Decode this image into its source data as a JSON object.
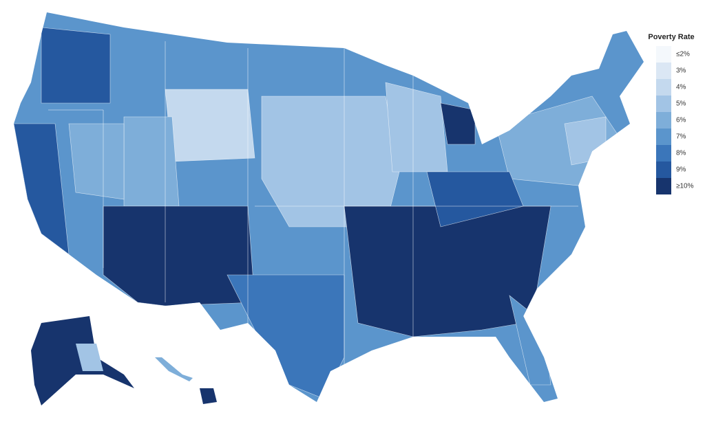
{
  "legend": {
    "title": "Poverty Rate",
    "items": [
      {
        "label": "≤2%",
        "color": "#f4f8fc"
      },
      {
        "label": "3%",
        "color": "#dbe7f4"
      },
      {
        "label": "4%",
        "color": "#c4d9ee"
      },
      {
        "label": "5%",
        "color": "#a2c4e5"
      },
      {
        "label": "6%",
        "color": "#7eaed9"
      },
      {
        "label": "7%",
        "color": "#5b95cc"
      },
      {
        "label": "8%",
        "color": "#3b76ba"
      },
      {
        "label": "9%",
        "color": "#25589f"
      },
      {
        "label": "≥10%",
        "color": "#17346d"
      }
    ]
  }
}
